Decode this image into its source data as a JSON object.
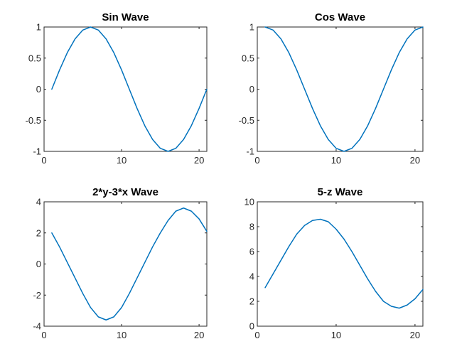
{
  "figure": {
    "background": "#ffffff",
    "line_color": "#0072bd"
  },
  "chart_data": [
    {
      "type": "line",
      "title": "Sin Wave",
      "xlabel": "",
      "ylabel": "",
      "xlim": [
        0,
        21
      ],
      "ylim": [
        -1,
        1
      ],
      "xticks": [
        0,
        10,
        20
      ],
      "yticks": [
        1,
        0.5,
        0,
        -0.5,
        -1
      ],
      "ytick_labels": [
        "1",
        "0.5",
        "0",
        "-0.5",
        "-1"
      ],
      "grid": false,
      "x": [
        1,
        2,
        3,
        4,
        5,
        6,
        7,
        8,
        9,
        10,
        11,
        12,
        13,
        14,
        15,
        16,
        17,
        18,
        19,
        20,
        21
      ],
      "y": [
        0,
        0.309,
        0.588,
        0.809,
        0.951,
        1,
        0.951,
        0.809,
        0.588,
        0.309,
        0,
        -0.309,
        -0.588,
        -0.809,
        -0.951,
        -1,
        -0.951,
        -0.809,
        -0.588,
        -0.309,
        0
      ]
    },
    {
      "type": "line",
      "title": "Cos Wave",
      "xlabel": "",
      "ylabel": "",
      "xlim": [
        0,
        21
      ],
      "ylim": [
        -1,
        1
      ],
      "xticks": [
        0,
        10,
        20
      ],
      "yticks": [
        1,
        0.5,
        0,
        -0.5,
        -1
      ],
      "ytick_labels": [
        "1",
        "0.5",
        "0",
        "-0.5",
        "-1"
      ],
      "grid": false,
      "x": [
        1,
        2,
        3,
        4,
        5,
        6,
        7,
        8,
        9,
        10,
        11,
        12,
        13,
        14,
        15,
        16,
        17,
        18,
        19,
        20,
        21
      ],
      "y": [
        1,
        0.951,
        0.809,
        0.588,
        0.309,
        0,
        -0.309,
        -0.588,
        -0.809,
        -0.951,
        -1,
        -0.951,
        -0.809,
        -0.588,
        -0.309,
        0,
        0.309,
        0.588,
        0.809,
        0.951,
        1
      ]
    },
    {
      "type": "line",
      "title": "2*y-3*x Wave",
      "xlabel": "",
      "ylabel": "",
      "xlim": [
        0,
        21
      ],
      "ylim": [
        -4,
        4
      ],
      "xticks": [
        0,
        10,
        20
      ],
      "yticks": [
        4,
        2,
        0,
        -2,
        -4
      ],
      "ytick_labels": [
        "4",
        "2",
        "0",
        "-2",
        "-4"
      ],
      "grid": false,
      "x": [
        1,
        2,
        3,
        4,
        5,
        6,
        7,
        8,
        9,
        10,
        11,
        12,
        13,
        14,
        15,
        16,
        17,
        18,
        19,
        20,
        21
      ],
      "y": [
        2,
        1.1,
        0.1,
        -0.9,
        -1.9,
        -2.8,
        -3.4,
        -3.6,
        -3.4,
        -2.8,
        -1.9,
        -0.9,
        0.1,
        1.1,
        2,
        2.8,
        3.4,
        3.6,
        3.4,
        2.9,
        2.1
      ]
    },
    {
      "type": "line",
      "title": "5-z Wave",
      "xlabel": "",
      "ylabel": "",
      "xlim": [
        0,
        21
      ],
      "ylim": [
        0,
        10
      ],
      "xticks": [
        0,
        10,
        20
      ],
      "yticks": [
        10,
        8,
        6,
        4,
        2,
        0
      ],
      "ytick_labels": [
        "10",
        "8",
        "6",
        "4",
        "2",
        "0"
      ],
      "grid": false,
      "x": [
        1,
        2,
        3,
        4,
        5,
        6,
        7,
        8,
        9,
        10,
        11,
        12,
        13,
        14,
        15,
        16,
        17,
        18,
        19,
        20,
        21
      ],
      "y": [
        3.1,
        4.2,
        5.3,
        6.4,
        7.4,
        8.1,
        8.5,
        8.6,
        8.4,
        7.8,
        7,
        6,
        4.9,
        3.8,
        2.8,
        2,
        1.6,
        1.45,
        1.7,
        2.2,
        2.95
      ]
    }
  ]
}
